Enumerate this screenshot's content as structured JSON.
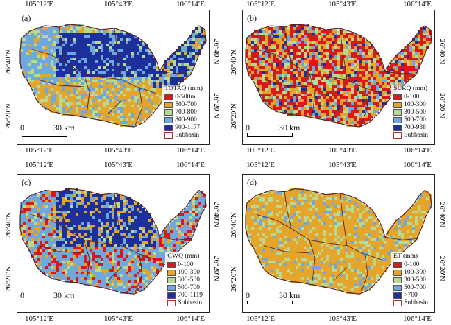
{
  "axes": {
    "x_ticks": [
      "105°12′E",
      "105°43′E",
      "106°14′E"
    ],
    "y_ticks": [
      "26°40′N",
      "26°20′N"
    ]
  },
  "scale": {
    "zero": "0",
    "distance": "30 km"
  },
  "colors": {
    "outline": "#b03030",
    "boundary": "#5a2020"
  },
  "panels": [
    {
      "label": "(a)",
      "legend_title": "TOTAQ (mm)",
      "classes": [
        {
          "label": "0-500m",
          "color": "#d7191c"
        },
        {
          "label": "500-700",
          "color": "#e5a42a"
        },
        {
          "label": "700-800",
          "color": "#b8d98f"
        },
        {
          "label": "800-900",
          "color": "#6fa8dc"
        },
        {
          "label": "900-1177",
          "color": "#1c2f9a"
        }
      ],
      "subbasin_label": "Subbasin"
    },
    {
      "label": "(b)",
      "legend_title": "SURQ (mm)",
      "classes": [
        {
          "label": "0-100",
          "color": "#d7191c"
        },
        {
          "label": "100-300",
          "color": "#e5a42a"
        },
        {
          "label": "300-500",
          "color": "#b8d98f"
        },
        {
          "label": "500-700",
          "color": "#6fa8dc"
        },
        {
          "label": "700-938",
          "color": "#1c2f9a"
        }
      ],
      "subbasin_label": "Subbasin"
    },
    {
      "label": "(c)",
      "legend_title": "GWQ (mm)",
      "classes": [
        {
          "label": "0-100",
          "color": "#d7191c"
        },
        {
          "label": "100-300",
          "color": "#e5a42a"
        },
        {
          "label": "300-500",
          "color": "#b8d98f"
        },
        {
          "label": "500-700",
          "color": "#6fa8dc"
        },
        {
          "label": "700-1119",
          "color": "#1c2f9a"
        }
      ],
      "subbasin_label": "Subbasin"
    },
    {
      "label": "(d)",
      "legend_title": "ET (mm)",
      "classes": [
        {
          "label": "0-100",
          "color": "#d7191c"
        },
        {
          "label": "100-300",
          "color": "#e5a42a"
        },
        {
          "label": "300-500",
          "color": "#b8d98f"
        },
        {
          "label": "500-700",
          "color": "#6fa8dc"
        },
        {
          "label": ">700",
          "color": "#1c2f9a"
        }
      ],
      "subbasin_label": "Subbasin"
    }
  ]
}
